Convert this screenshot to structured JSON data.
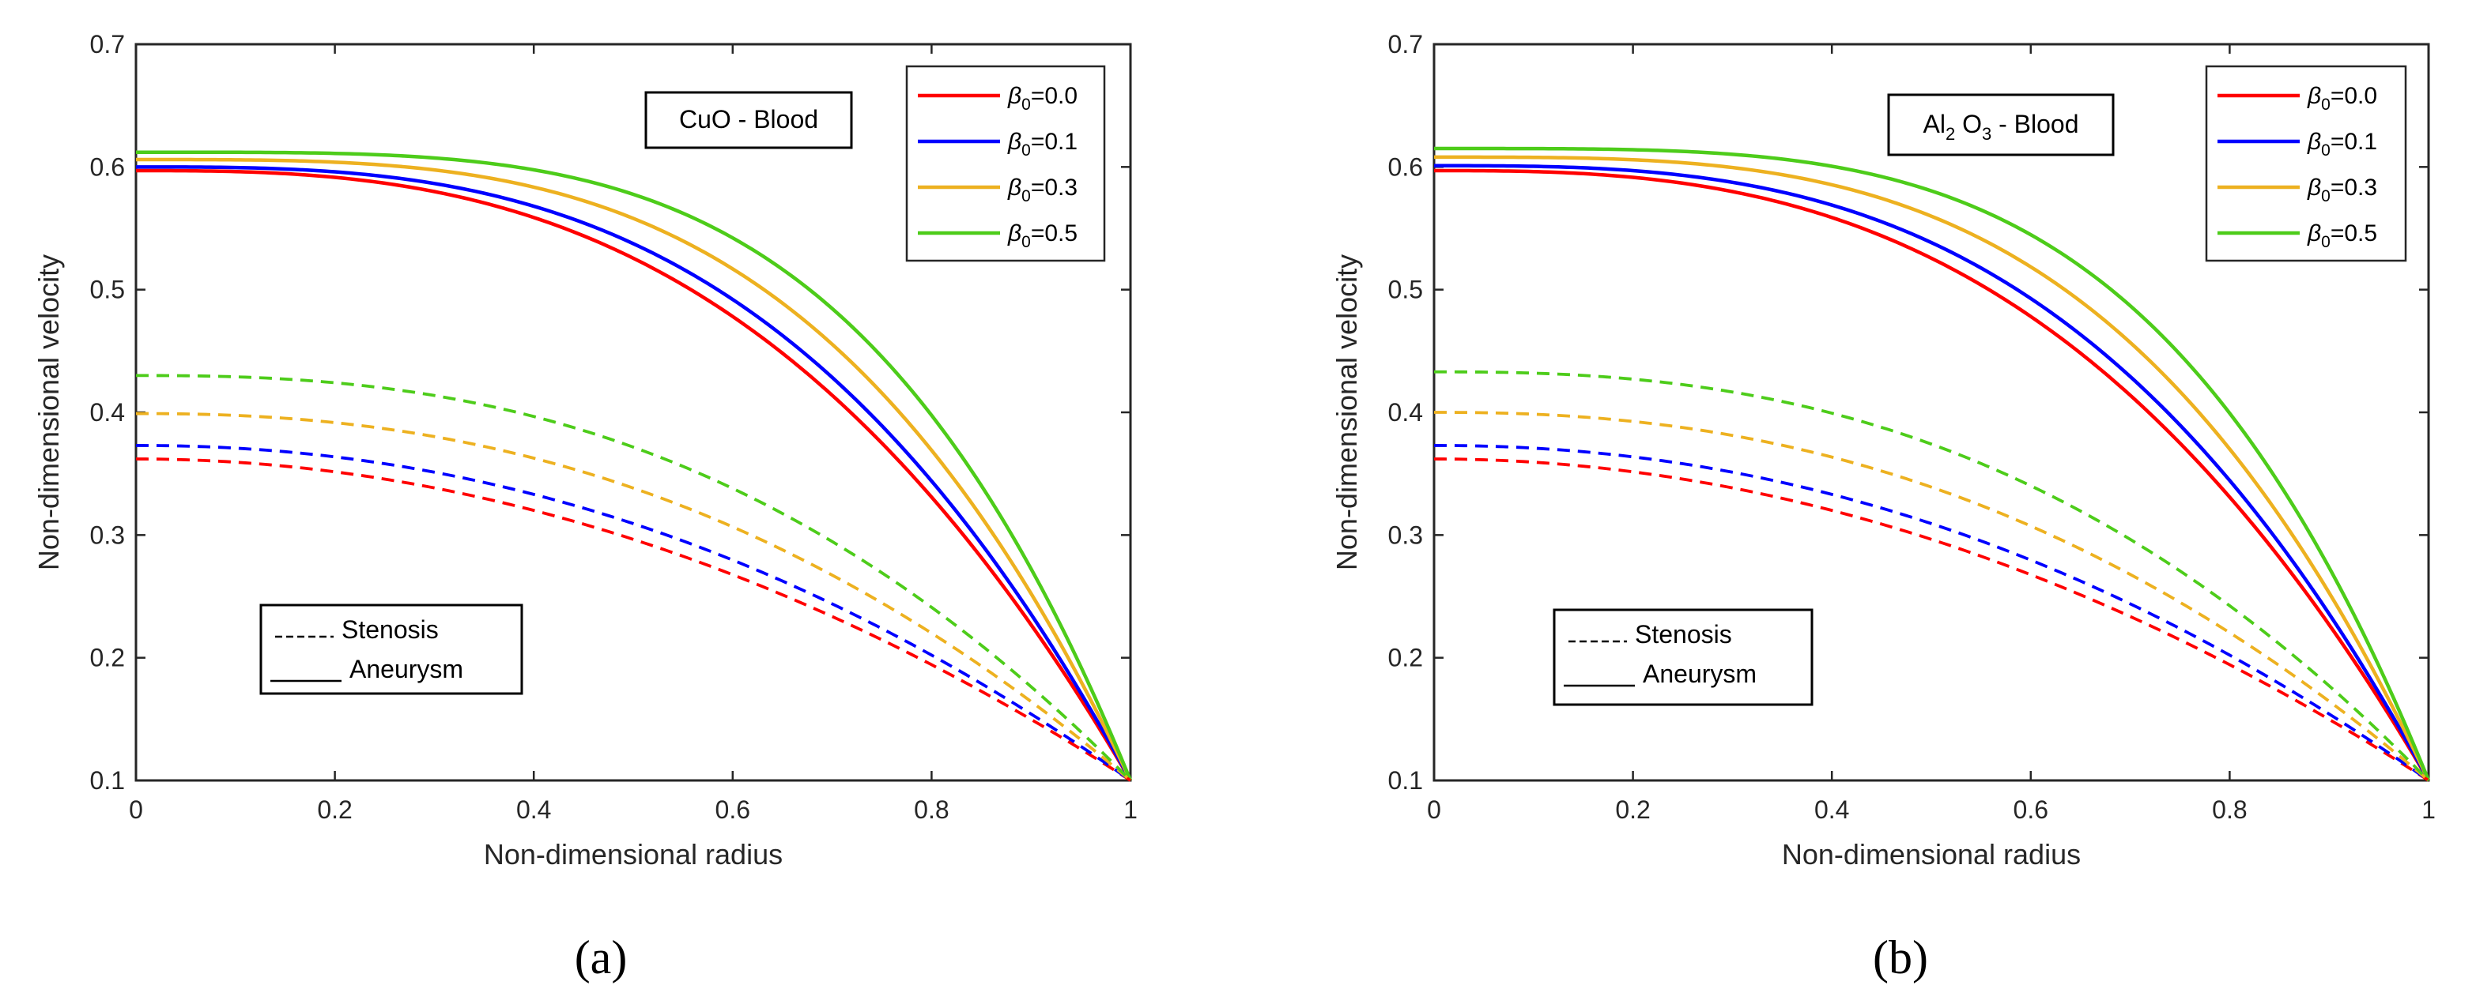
{
  "chart_data": [
    {
      "type": "line",
      "panel_label": "(a)",
      "annotation": {
        "parts": [
          {
            "text": "CuO - Blood",
            "sub": false
          }
        ]
      },
      "xlabel": "Non-dimensional radius",
      "ylabel": "Non-dimensional velocity",
      "xlim": [
        0,
        1
      ],
      "ylim": [
        0.1,
        0.7
      ],
      "xticks": [
        0,
        0.2,
        0.4,
        0.6,
        0.8,
        1
      ],
      "xtick_labels": [
        "0",
        "0.2",
        "0.4",
        "0.6",
        "0.8",
        "1"
      ],
      "yticks": [
        0.1,
        0.2,
        0.3,
        0.4,
        0.5,
        0.6,
        0.7
      ],
      "ytick_labels": [
        "0.1",
        "0.2",
        "0.3",
        "0.4",
        "0.5",
        "0.6",
        "0.7"
      ],
      "legend_position": "top-right",
      "legend": [
        {
          "symbol": "β",
          "sub": "0",
          "value": "=0.0",
          "color": "#ff0000"
        },
        {
          "symbol": "β",
          "sub": "0",
          "value": "=0.1",
          "color": "#0000ff"
        },
        {
          "symbol": "β",
          "sub": "0",
          "value": "=0.3",
          "color": "#edb120"
        },
        {
          "symbol": "β",
          "sub": "0",
          "value": "=0.5",
          "color": "#4dcc1a"
        }
      ],
      "line_style_legend": {
        "dashed": "Stenosis",
        "solid": "Aneurysm"
      },
      "series": [
        {
          "name": "β0=0.0 Aneurysm",
          "style": "solid",
          "color": "#ff0000",
          "x_end": 1,
          "y_start": 0.597,
          "y_end": 0.1,
          "exponent": 2.8
        },
        {
          "name": "β0=0.1 Aneurysm",
          "style": "solid",
          "color": "#0000ff",
          "x_end": 1,
          "y_start": 0.6,
          "y_end": 0.1,
          "exponent": 3.0
        },
        {
          "name": "β0=0.3 Aneurysm",
          "style": "solid",
          "color": "#edb120",
          "x_end": 1,
          "y_start": 0.606,
          "y_end": 0.1,
          "exponent": 3.4
        },
        {
          "name": "β0=0.5 Aneurysm",
          "style": "solid",
          "color": "#4dcc1a",
          "x_end": 1,
          "y_start": 0.612,
          "y_end": 0.1,
          "exponent": 3.9
        },
        {
          "name": "β0=0.0 Stenosis",
          "style": "dashed",
          "color": "#ff0000",
          "x_end": 1,
          "y_start": 0.362,
          "y_end": 0.1,
          "exponent": 2.0
        },
        {
          "name": "β0=0.1 Stenosis",
          "style": "dashed",
          "color": "#0000ff",
          "x_end": 1,
          "y_start": 0.373,
          "y_end": 0.1,
          "exponent": 2.1
        },
        {
          "name": "β0=0.3 Stenosis",
          "style": "dashed",
          "color": "#edb120",
          "x_end": 1,
          "y_start": 0.399,
          "y_end": 0.1,
          "exponent": 2.3
        },
        {
          "name": "β0=0.5 Stenosis",
          "style": "dashed",
          "color": "#4dcc1a",
          "x_end": 1,
          "y_start": 0.43,
          "y_end": 0.1,
          "exponent": 2.5
        }
      ]
    },
    {
      "type": "line",
      "panel_label": "(b)",
      "annotation": {
        "parts": [
          {
            "text": "Al",
            "sub": false
          },
          {
            "text": "2",
            "sub": true
          },
          {
            "text": " O",
            "sub": false
          },
          {
            "text": "3",
            "sub": true
          },
          {
            "text": " - Blood",
            "sub": false
          }
        ]
      },
      "xlabel": "Non-dimensional radius",
      "ylabel": "Non-dimensional velocity",
      "xlim": [
        0,
        1
      ],
      "ylim": [
        0.1,
        0.7
      ],
      "xticks": [
        0,
        0.2,
        0.4,
        0.6,
        0.8,
        1
      ],
      "xtick_labels": [
        "0",
        "0.2",
        "0.4",
        "0.6",
        "0.8",
        "1"
      ],
      "yticks": [
        0.1,
        0.2,
        0.3,
        0.4,
        0.5,
        0.6,
        0.7
      ],
      "ytick_labels": [
        "0.1",
        "0.2",
        "0.3",
        "0.4",
        "0.5",
        "0.6",
        "0.7"
      ],
      "legend_position": "top-right",
      "legend": [
        {
          "symbol": "β",
          "sub": "0",
          "value": "=0.0",
          "color": "#ff0000"
        },
        {
          "symbol": "β",
          "sub": "0",
          "value": "=0.1",
          "color": "#0000ff"
        },
        {
          "symbol": "β",
          "sub": "0",
          "value": "=0.3",
          "color": "#edb120"
        },
        {
          "symbol": "β",
          "sub": "0",
          "value": "=0.5",
          "color": "#4dcc1a"
        }
      ],
      "line_style_legend": {
        "dashed": "Stenosis",
        "solid": "Aneurysm"
      },
      "series": [
        {
          "name": "β0=0.0 Aneurysm",
          "style": "solid",
          "color": "#ff0000",
          "x_end": 1,
          "y_start": 0.597,
          "y_end": 0.1,
          "exponent": 2.8
        },
        {
          "name": "β0=0.1 Aneurysm",
          "style": "solid",
          "color": "#0000ff",
          "x_end": 1,
          "y_start": 0.601,
          "y_end": 0.1,
          "exponent": 3.0
        },
        {
          "name": "β0=0.3 Aneurysm",
          "style": "solid",
          "color": "#edb120",
          "x_end": 1,
          "y_start": 0.608,
          "y_end": 0.1,
          "exponent": 3.4
        },
        {
          "name": "β0=0.5 Aneurysm",
          "style": "solid",
          "color": "#4dcc1a",
          "x_end": 1,
          "y_start": 0.615,
          "y_end": 0.1,
          "exponent": 3.9
        },
        {
          "name": "β0=0.0 Stenosis",
          "style": "dashed",
          "color": "#ff0000",
          "x_end": 1,
          "y_start": 0.362,
          "y_end": 0.1,
          "exponent": 2.0
        },
        {
          "name": "β0=0.1 Stenosis",
          "style": "dashed",
          "color": "#0000ff",
          "x_end": 1,
          "y_start": 0.373,
          "y_end": 0.1,
          "exponent": 2.1
        },
        {
          "name": "β0=0.3 Stenosis",
          "style": "dashed",
          "color": "#edb120",
          "x_end": 1,
          "y_start": 0.4,
          "y_end": 0.1,
          "exponent": 2.3
        },
        {
          "name": "β0=0.5 Stenosis",
          "style": "dashed",
          "color": "#4dcc1a",
          "x_end": 1,
          "y_start": 0.433,
          "y_end": 0.1,
          "exponent": 2.5
        }
      ]
    }
  ]
}
